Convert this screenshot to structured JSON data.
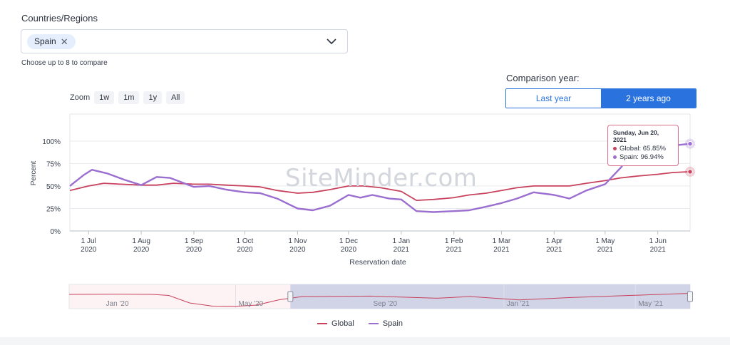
{
  "filter": {
    "label": "Countries/Regions",
    "selected": [
      "Spain"
    ],
    "hint": "Choose up to 8 to compare"
  },
  "comparison": {
    "label": "Comparison year:",
    "options": [
      "Last year",
      "2 years ago"
    ],
    "selected": "2 years ago"
  },
  "zoom": {
    "label": "Zoom",
    "options": [
      "1w",
      "1m",
      "1y",
      "All"
    ]
  },
  "watermark": "SiteMinder.com",
  "tooltip": {
    "title": "Sunday, Jun 20, 2021",
    "rows": [
      {
        "label": "Global: 65.85%",
        "color": "#c8425e"
      },
      {
        "label": "Spain: 96.94%",
        "color": "#9b6fcf"
      }
    ]
  },
  "legend": [
    {
      "label": "Global",
      "color": "#c8425e"
    },
    {
      "label": "Spain",
      "color": "#9b6fcf"
    }
  ],
  "navigator_labels": [
    "Jan '20",
    "May '20",
    "Sep '20",
    "Jan '21",
    "May '21"
  ],
  "chart_data": {
    "type": "line",
    "xlabel": "Reservation date",
    "ylabel": "Percent",
    "ylim": [
      0,
      130
    ],
    "y_ticks": [
      "0%",
      "25%",
      "50%",
      "75%",
      "100%"
    ],
    "x_ticks": [
      {
        "day": "1 Jul",
        "year": "2020"
      },
      {
        "day": "1 Aug",
        "year": "2020"
      },
      {
        "day": "1 Sep",
        "year": "2020"
      },
      {
        "day": "1 Oct",
        "year": "2020"
      },
      {
        "day": "1 Nov",
        "year": "2020"
      },
      {
        "day": "1 Dec",
        "year": "2020"
      },
      {
        "day": "1 Jan",
        "year": "2021"
      },
      {
        "day": "1 Feb",
        "year": "2021"
      },
      {
        "day": "1 Mar",
        "year": "2021"
      },
      {
        "day": "1 Apr",
        "year": "2021"
      },
      {
        "day": "1 May",
        "year": "2021"
      },
      {
        "day": "1 Jun",
        "year": "2021"
      }
    ],
    "x_range": [
      "2020-06-20",
      "2021-06-20"
    ],
    "series": [
      {
        "name": "Global",
        "color": "#c8425e",
        "points": [
          [
            "2020-06-20",
            45
          ],
          [
            "2020-07-01",
            50
          ],
          [
            "2020-07-10",
            53
          ],
          [
            "2020-07-20",
            52
          ],
          [
            "2020-08-01",
            51
          ],
          [
            "2020-08-10",
            51
          ],
          [
            "2020-08-20",
            53
          ],
          [
            "2020-09-01",
            52
          ],
          [
            "2020-09-10",
            52
          ],
          [
            "2020-09-20",
            51
          ],
          [
            "2020-10-01",
            50
          ],
          [
            "2020-10-10",
            49
          ],
          [
            "2020-10-20",
            45
          ],
          [
            "2020-11-01",
            42
          ],
          [
            "2020-11-10",
            43
          ],
          [
            "2020-11-20",
            46
          ],
          [
            "2020-12-01",
            50
          ],
          [
            "2020-12-10",
            50
          ],
          [
            "2020-12-20",
            48
          ],
          [
            "2021-01-01",
            44
          ],
          [
            "2021-01-10",
            34
          ],
          [
            "2021-01-20",
            35
          ],
          [
            "2021-02-01",
            37
          ],
          [
            "2021-02-10",
            40
          ],
          [
            "2021-02-20",
            42
          ],
          [
            "2021-03-01",
            45
          ],
          [
            "2021-03-10",
            48
          ],
          [
            "2021-03-20",
            50
          ],
          [
            "2021-04-01",
            50
          ],
          [
            "2021-04-10",
            50
          ],
          [
            "2021-04-20",
            53
          ],
          [
            "2021-05-01",
            56
          ],
          [
            "2021-05-10",
            59
          ],
          [
            "2021-05-20",
            61
          ],
          [
            "2021-06-01",
            63
          ],
          [
            "2021-06-10",
            65
          ],
          [
            "2021-06-20",
            65.85
          ]
        ]
      },
      {
        "name": "Spain",
        "color": "#9b6fcf",
        "points": [
          [
            "2020-06-20",
            50
          ],
          [
            "2020-06-28",
            62
          ],
          [
            "2020-07-03",
            68
          ],
          [
            "2020-07-12",
            64
          ],
          [
            "2020-07-22",
            57
          ],
          [
            "2020-08-01",
            51
          ],
          [
            "2020-08-10",
            60
          ],
          [
            "2020-08-18",
            59
          ],
          [
            "2020-09-01",
            49
          ],
          [
            "2020-09-10",
            50
          ],
          [
            "2020-09-20",
            46
          ],
          [
            "2020-10-01",
            43
          ],
          [
            "2020-10-10",
            42
          ],
          [
            "2020-10-20",
            36
          ],
          [
            "2020-11-01",
            25
          ],
          [
            "2020-11-10",
            23
          ],
          [
            "2020-11-20",
            28
          ],
          [
            "2020-12-01",
            40
          ],
          [
            "2020-12-08",
            37
          ],
          [
            "2020-12-15",
            40
          ],
          [
            "2020-12-25",
            36
          ],
          [
            "2021-01-01",
            35
          ],
          [
            "2021-01-10",
            22
          ],
          [
            "2021-01-20",
            21
          ],
          [
            "2021-02-01",
            22
          ],
          [
            "2021-02-10",
            23
          ],
          [
            "2021-02-20",
            27
          ],
          [
            "2021-03-01",
            31
          ],
          [
            "2021-03-10",
            36
          ],
          [
            "2021-03-20",
            43
          ],
          [
            "2021-04-01",
            40
          ],
          [
            "2021-04-10",
            36
          ],
          [
            "2021-04-20",
            45
          ],
          [
            "2021-05-01",
            52
          ],
          [
            "2021-05-10",
            70
          ],
          [
            "2021-05-20",
            93
          ],
          [
            "2021-06-01",
            96
          ],
          [
            "2021-06-10",
            95
          ],
          [
            "2021-06-20",
            96.94
          ]
        ]
      }
    ]
  },
  "navigator_data": {
    "x_range": [
      "2019-12-01",
      "2021-06-20"
    ],
    "selection": [
      "2020-06-20",
      "2021-06-20"
    ],
    "values": [
      [
        "2019-12-01",
        60
      ],
      [
        "2020-01-15",
        61
      ],
      [
        "2020-02-15",
        60
      ],
      [
        "2020-03-01",
        55
      ],
      [
        "2020-03-20",
        20
      ],
      [
        "2020-04-10",
        5
      ],
      [
        "2020-05-01",
        4
      ],
      [
        "2020-05-20",
        10
      ],
      [
        "2020-06-10",
        35
      ],
      [
        "2020-07-01",
        50
      ],
      [
        "2020-09-01",
        52
      ],
      [
        "2020-11-01",
        42
      ],
      [
        "2020-12-01",
        50
      ],
      [
        "2021-01-15",
        34
      ],
      [
        "2021-03-01",
        45
      ],
      [
        "2021-05-01",
        56
      ],
      [
        "2021-06-20",
        65
      ]
    ]
  }
}
